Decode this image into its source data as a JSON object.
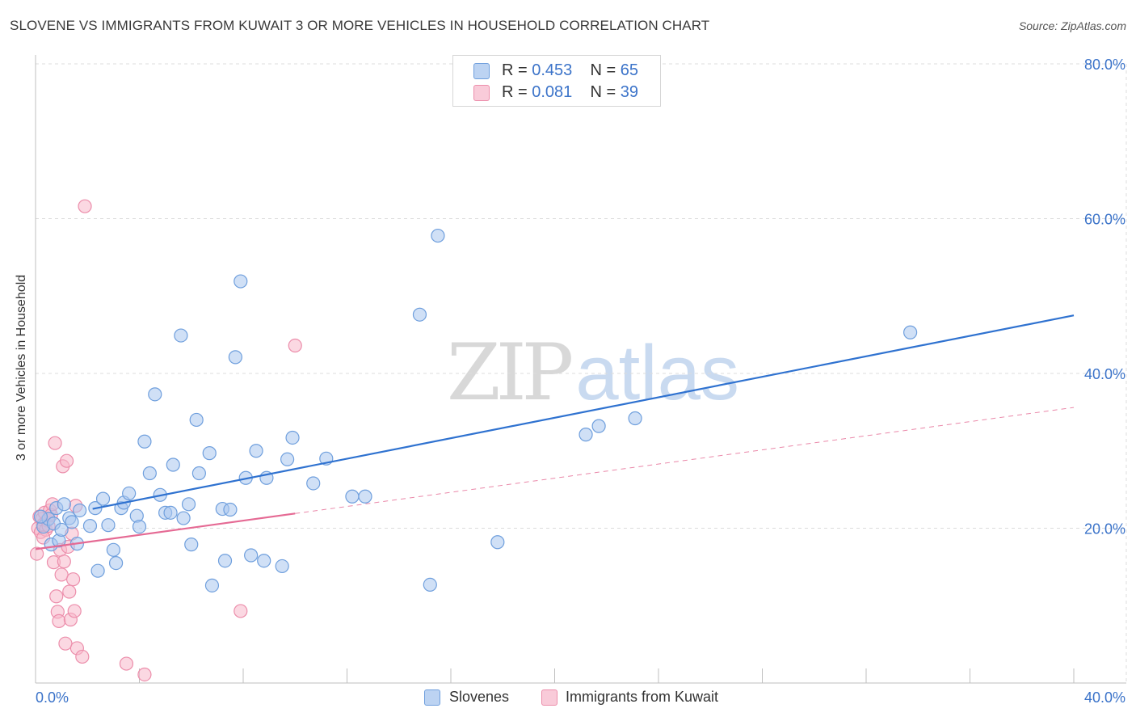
{
  "header": {
    "title": "SLOVENE VS IMMIGRANTS FROM KUWAIT 3 OR MORE VEHICLES IN HOUSEHOLD CORRELATION CHART",
    "source": "Source: ZipAtlas.com"
  },
  "watermark": {
    "zip": "ZIP",
    "atlas": "atlas"
  },
  "legend": {
    "series1": {
      "r_label": "R = ",
      "r_value": "0.453",
      "n_label": "N = ",
      "n_value": "65"
    },
    "series2": {
      "r_label": "R = ",
      "r_value": "0.081",
      "n_label": "N = ",
      "n_value": "39"
    }
  },
  "colors": {
    "blue_fill": "#a9c6ee",
    "blue_stroke": "#6f9fdd",
    "blue_line": "#2f72d0",
    "pink_fill": "#f7b8ca",
    "pink_stroke": "#ec8eab",
    "pink_line": "#e56a94",
    "axis_text": "#3b73c9",
    "grid": "#dcdcdc"
  },
  "chart_data": {
    "type": "scatter",
    "title": "SLOVENE VS IMMIGRANTS FROM KUWAIT 3 OR MORE VEHICLES IN HOUSEHOLD CORRELATION CHART",
    "xlabel": "",
    "ylabel": "3 or more Vehicles in Household",
    "xlim": [
      0,
      40
    ],
    "ylim": [
      0,
      80
    ],
    "x_ticks": [
      "0.0%",
      "40.0%"
    ],
    "y_ticks": [
      {
        "value": 20,
        "label": "20.0%"
      },
      {
        "value": 40,
        "label": "40.0%"
      },
      {
        "value": 60,
        "label": "60.0%"
      },
      {
        "value": 80,
        "label": "80.0%"
      }
    ],
    "grid": true,
    "legend_position": "top-center",
    "series": [
      {
        "name": "Slovenes",
        "r": 0.453,
        "n": 65,
        "trend": {
          "x": [
            2.2,
            40.0
          ],
          "y": [
            22.5,
            47.5
          ],
          "style": "solid"
        },
        "points": [
          [
            0.3,
            20.2
          ],
          [
            0.5,
            21.2
          ],
          [
            0.6,
            17.9
          ],
          [
            0.7,
            20.6
          ],
          [
            0.8,
            22.6
          ],
          [
            0.9,
            18.4
          ],
          [
            1.0,
            19.8
          ],
          [
            1.1,
            23.1
          ],
          [
            1.3,
            21.3
          ],
          [
            1.4,
            20.8
          ],
          [
            1.6,
            18.0
          ],
          [
            1.7,
            22.3
          ],
          [
            2.1,
            20.3
          ],
          [
            2.3,
            22.6
          ],
          [
            2.4,
            14.5
          ],
          [
            2.6,
            23.8
          ],
          [
            2.8,
            20.4
          ],
          [
            3.0,
            17.2
          ],
          [
            3.1,
            15.5
          ],
          [
            3.3,
            22.6
          ],
          [
            3.4,
            23.3
          ],
          [
            3.6,
            24.5
          ],
          [
            3.9,
            21.6
          ],
          [
            4.0,
            20.2
          ],
          [
            4.2,
            31.2
          ],
          [
            4.4,
            27.1
          ],
          [
            4.6,
            37.3
          ],
          [
            4.8,
            24.3
          ],
          [
            5.0,
            22.0
          ],
          [
            5.2,
            22.0
          ],
          [
            5.3,
            28.2
          ],
          [
            5.6,
            44.9
          ],
          [
            5.7,
            21.3
          ],
          [
            5.9,
            23.1
          ],
          [
            6.0,
            17.9
          ],
          [
            6.2,
            34.0
          ],
          [
            6.3,
            27.1
          ],
          [
            6.7,
            29.7
          ],
          [
            6.8,
            12.6
          ],
          [
            7.2,
            22.5
          ],
          [
            7.3,
            15.8
          ],
          [
            7.5,
            22.4
          ],
          [
            7.7,
            42.1
          ],
          [
            7.9,
            51.9
          ],
          [
            8.1,
            26.5
          ],
          [
            8.3,
            16.5
          ],
          [
            8.5,
            30.0
          ],
          [
            8.8,
            15.8
          ],
          [
            8.9,
            26.5
          ],
          [
            9.5,
            15.1
          ],
          [
            9.7,
            28.9
          ],
          [
            9.9,
            31.7
          ],
          [
            10.7,
            25.8
          ],
          [
            11.2,
            29.0
          ],
          [
            12.2,
            24.1
          ],
          [
            12.7,
            24.1
          ],
          [
            14.8,
            47.6
          ],
          [
            15.2,
            12.7
          ],
          [
            15.5,
            57.8
          ],
          [
            17.8,
            18.2
          ],
          [
            21.2,
            32.1
          ],
          [
            21.7,
            33.2
          ],
          [
            23.1,
            34.2
          ],
          [
            33.7,
            45.3
          ],
          [
            0.2,
            21.5
          ]
        ]
      },
      {
        "name": "Immigrants from Kuwait",
        "r": 0.081,
        "n": 39,
        "trend": {
          "x": [
            0.0,
            10.0
          ],
          "y": [
            17.3,
            21.9
          ],
          "style": "solid"
        },
        "trend_extension": {
          "x": [
            10.0,
            40.0
          ],
          "y": [
            21.9,
            35.6
          ],
          "style": "dashed"
        },
        "points": [
          [
            0.05,
            16.7
          ],
          [
            0.1,
            20.0
          ],
          [
            0.15,
            21.5
          ],
          [
            0.2,
            19.5
          ],
          [
            0.25,
            21.2
          ],
          [
            0.3,
            20.5
          ],
          [
            0.35,
            22.0
          ],
          [
            0.4,
            19.8
          ],
          [
            0.45,
            21.0
          ],
          [
            0.5,
            20.3
          ],
          [
            0.55,
            22.3
          ],
          [
            0.6,
            21.7
          ],
          [
            0.65,
            23.1
          ],
          [
            0.7,
            15.6
          ],
          [
            0.75,
            31.0
          ],
          [
            0.8,
            11.2
          ],
          [
            0.85,
            9.2
          ],
          [
            0.9,
            8.0
          ],
          [
            0.95,
            17.2
          ],
          [
            1.0,
            14.0
          ],
          [
            1.05,
            28.0
          ],
          [
            1.1,
            15.7
          ],
          [
            1.15,
            5.1
          ],
          [
            1.2,
            28.7
          ],
          [
            1.25,
            17.6
          ],
          [
            1.3,
            11.8
          ],
          [
            1.35,
            8.2
          ],
          [
            1.4,
            19.3
          ],
          [
            1.45,
            13.4
          ],
          [
            1.5,
            9.3
          ],
          [
            1.55,
            22.9
          ],
          [
            1.6,
            4.5
          ],
          [
            1.8,
            3.4
          ],
          [
            1.9,
            61.6
          ],
          [
            3.5,
            2.5
          ],
          [
            4.2,
            1.1
          ],
          [
            7.9,
            9.3
          ],
          [
            10.0,
            43.6
          ],
          [
            0.3,
            18.8
          ]
        ]
      }
    ]
  }
}
